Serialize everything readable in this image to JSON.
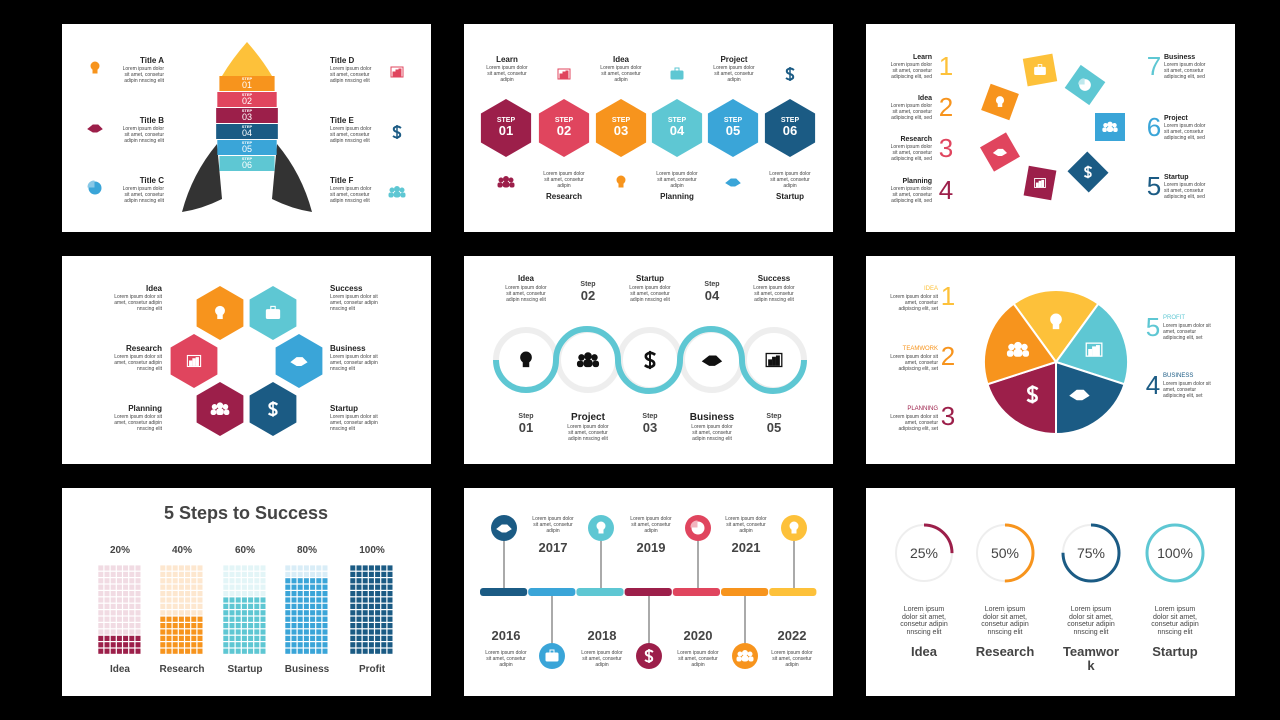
{
  "slides": [
    {
      "items": [
        {
          "title": "Title A",
          "body": "Lorem ipsum dolor sit amet, consetur adipin nnscing elit"
        },
        {
          "title": "Title B",
          "body": "Lorem ipsum dolor sit amet, consetur adipin nnscing elit"
        },
        {
          "title": "Title C",
          "body": "Lorem ipsum dolor sit amet, consetur adipin nnscing elit"
        },
        {
          "title": "Title D",
          "body": "Lorem ipsum dolor sit amet, consetur adipin nnscing elit"
        },
        {
          "title": "Title E",
          "body": "Lorem ipsum dolor sit amet, consetur adipin nnscing elit"
        },
        {
          "title": "Title F",
          "body": "Lorem ipsum dolor sit amet, consetur adipin nnscing elit"
        }
      ],
      "step_word": "STEP",
      "steps": [
        "01",
        "02",
        "03",
        "04",
        "05",
        "06"
      ]
    },
    {
      "items": [
        {
          "title": "Learn",
          "body": "Lorem ipsum dolor sit amet, consetur adipin"
        },
        {
          "title": "Idea",
          "body": "Lorem ipsum dolor sit amet, consetur adipin"
        },
        {
          "title": "Project",
          "body": "Lorem ipsum dolor sit amet, consetur adipin"
        },
        {
          "title": "Research",
          "body": "Lorem ipsum dolor sit amet, consetur adipin"
        },
        {
          "title": "Planning",
          "body": "Lorem ipsum dolor sit amet, consetur adipin"
        },
        {
          "title": "Startup",
          "body": "Lorem ipsum dolor sit amet, consetur adipin"
        }
      ],
      "step_word": "STEP",
      "steps": [
        "01",
        "02",
        "03",
        "04",
        "05",
        "06"
      ]
    },
    {
      "items": [
        {
          "number": "1",
          "title": "Learn",
          "body": "Lorem ipsum dolor sit amet, consetur adipiscing elit, sed"
        },
        {
          "number": "2",
          "title": "Idea",
          "body": "Lorem ipsum dolor sit amet, consetur adipiscing elit, sed"
        },
        {
          "number": "3",
          "title": "Research",
          "body": "Lorem ipsum dolor sit amet, consetur adipiscing elit, sed"
        },
        {
          "number": "4",
          "title": "Planning",
          "body": "Lorem ipsum dolor sit amet, consetur adipiscing elit, sed"
        },
        {
          "number": "7",
          "title": "Business",
          "body": "Lorem ipsum dolor sit amet, consetur adipiscing elit, sed"
        },
        {
          "number": "6",
          "title": "Project",
          "body": "Lorem ipsum dolor sit amet, consetur adipiscing elit, sed"
        },
        {
          "number": "5",
          "title": "Startup",
          "body": "Lorem ipsum dolor sit amet, consetur adipiscing elit, sed"
        }
      ]
    },
    {
      "items": [
        {
          "title": "Idea",
          "body": "Lorem ipsum dolor sit amet, consetur adipin nnscing elit"
        },
        {
          "title": "Research",
          "body": "Lorem ipsum dolor sit amet, consetur adipin nnscing elit"
        },
        {
          "title": "Planning",
          "body": "Lorem ipsum dolor sit amet, consetur adipin nnscing elit"
        },
        {
          "title": "Success",
          "body": "Lorem ipsum dolor sit amet, consetur adipin nnscing elit"
        },
        {
          "title": "Business",
          "body": "Lorem ipsum dolor sit amet, consetur adipin nnscing elit"
        },
        {
          "title": "Startup",
          "body": "Lorem ipsum dolor sit amet, consetur adipin nnscing elit"
        }
      ]
    },
    {
      "step_word": "Step",
      "items": [
        {
          "title": "Idea",
          "body": "Lorem ipsum dolor sit amet, consetur adipin nnscing elit",
          "step": "01"
        },
        {
          "title": "Project",
          "body": "Lorem ipsum dolor sit amet, consetur adipin nnscing elit",
          "step": "02"
        },
        {
          "title": "Startup",
          "body": "Lorem ipsum dolor sit amet, consetur adipin nnscing elit",
          "step": "03"
        },
        {
          "title": "Business",
          "body": "Lorem ipsum dolor sit amet, consetur adipin nnscing elit",
          "step": "04"
        },
        {
          "title": "Success",
          "body": "Lorem ipsum dolor sit amet, consetur adipin nnscing elit",
          "step": "05"
        }
      ]
    },
    {
      "items": [
        {
          "number": "1",
          "title": "IDEA",
          "body": "Lorem ipsum dolor sit amet, consetur adipiscing elit, set"
        },
        {
          "number": "2",
          "title": "TEAMWORK",
          "body": "Lorem ipsum dolor sit amet, consetur adipiscing elit, set"
        },
        {
          "number": "3",
          "title": "PLANNING",
          "body": "Lorem ipsum dolor sit amet, consetur adipiscing elit, set"
        },
        {
          "number": "5",
          "title": "PROFIT",
          "body": "Lorem ipsum dolor sit amet, consetur adipiscing elit, set"
        },
        {
          "number": "4",
          "title": "BUSINESS",
          "body": "Lorem ipsum dolor sit amet, consetur adipiscing elit, set"
        }
      ]
    },
    {
      "title": "5 Steps to Success",
      "categories": [
        "Idea",
        "Research",
        "Startup",
        "Business",
        "Profit"
      ],
      "values": [
        20,
        40,
        60,
        80,
        100
      ],
      "value_labels": [
        "20%",
        "40%",
        "60%",
        "80%",
        "100%"
      ]
    },
    {
      "items": [
        {
          "year": "2016",
          "body": "Lorem ipsum dolor sit amet, consetur adipin"
        },
        {
          "year": "2017",
          "body": "Lorem ipsum dolor sit amet, consetur adipin"
        },
        {
          "year": "2018",
          "body": "Lorem ipsum dolor sit amet, consetur adipin"
        },
        {
          "year": "2019",
          "body": "Lorem ipsum dolor sit amet, consetur adipin"
        },
        {
          "year": "2020",
          "body": "Lorem ipsum dolor sit amet, consetur adipin"
        },
        {
          "year": "2021",
          "body": "Lorem ipsum dolor sit amet, consetur adipin"
        },
        {
          "year": "2022",
          "body": "Lorem ipsum dolor sit amet, consetur adipin"
        }
      ]
    },
    {
      "categories": [
        "Idea",
        "Research",
        "Teamwork",
        "Startup"
      ],
      "values": [
        25,
        50,
        75,
        100
      ],
      "value_labels": [
        "25%",
        "50%",
        "75%",
        "100%"
      ],
      "bodies": [
        "Lorem ipsum dolor sit amet, consetur adipin nnscing elit",
        "Lorem ipsum dolor sit amet, consetur adipin nnscing elit",
        "Lorem ipsum dolor sit amet, consetur adipin nnscing elit",
        "Lorem ipsum dolor sit amet, consetur adipin nnscing elit"
      ]
    }
  ]
}
